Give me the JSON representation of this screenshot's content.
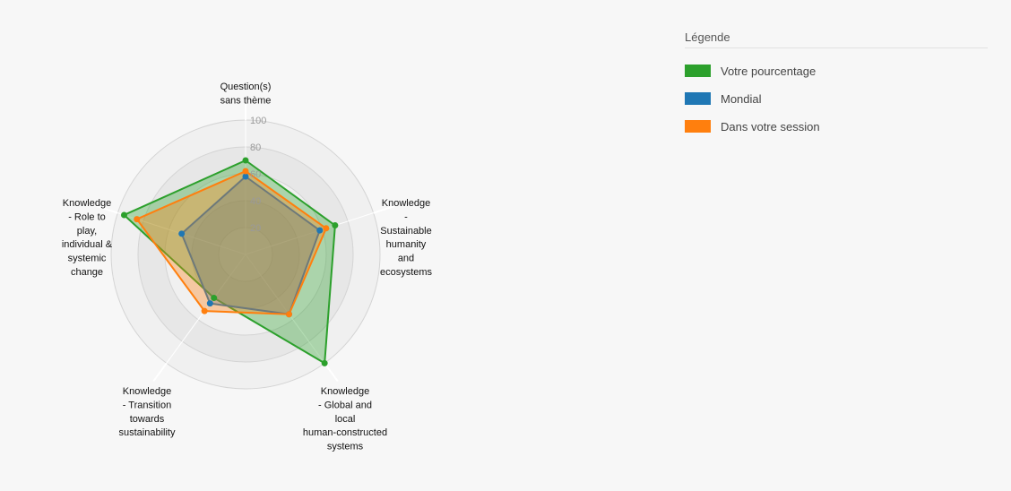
{
  "chart_data": {
    "type": "radar",
    "axes": [
      [
        "Question(s)",
        "sans thème"
      ],
      [
        "Knowledge",
        "-",
        "Sustainable",
        "humanity",
        "and",
        "ecosystems"
      ],
      [
        "Knowledge",
        "- Global and",
        "local",
        "human-constructed",
        "systems"
      ],
      [
        "Knowledge",
        "- Transition",
        "towards",
        "sustainability"
      ],
      [
        "Knowledge",
        "- Role to",
        "play,",
        "individual &",
        "systemic",
        "change"
      ]
    ],
    "range": [
      0,
      100
    ],
    "ticks": [
      "20",
      "40",
      "60",
      "80",
      "100"
    ],
    "tick_values": [
      20,
      40,
      60,
      80,
      100
    ],
    "series": [
      {
        "name": "Votre pourcentage",
        "color": "#2ca02c",
        "values": [
          70,
          70,
          100,
          40,
          95
        ]
      },
      {
        "name": "Mondial",
        "color": "#1f77b4",
        "values": [
          58,
          58,
          55,
          45,
          50
        ]
      },
      {
        "name": "Dans votre session",
        "color": "#ff7f0e",
        "values": [
          62,
          63,
          55,
          52,
          85
        ]
      }
    ]
  },
  "legend": {
    "title": "Légende",
    "items": [
      {
        "label": "Votre pourcentage",
        "color": "#2ca02c"
      },
      {
        "label": "Mondial",
        "color": "#1f77b4"
      },
      {
        "label": "Dans votre session",
        "color": "#ff7f0e"
      }
    ]
  }
}
